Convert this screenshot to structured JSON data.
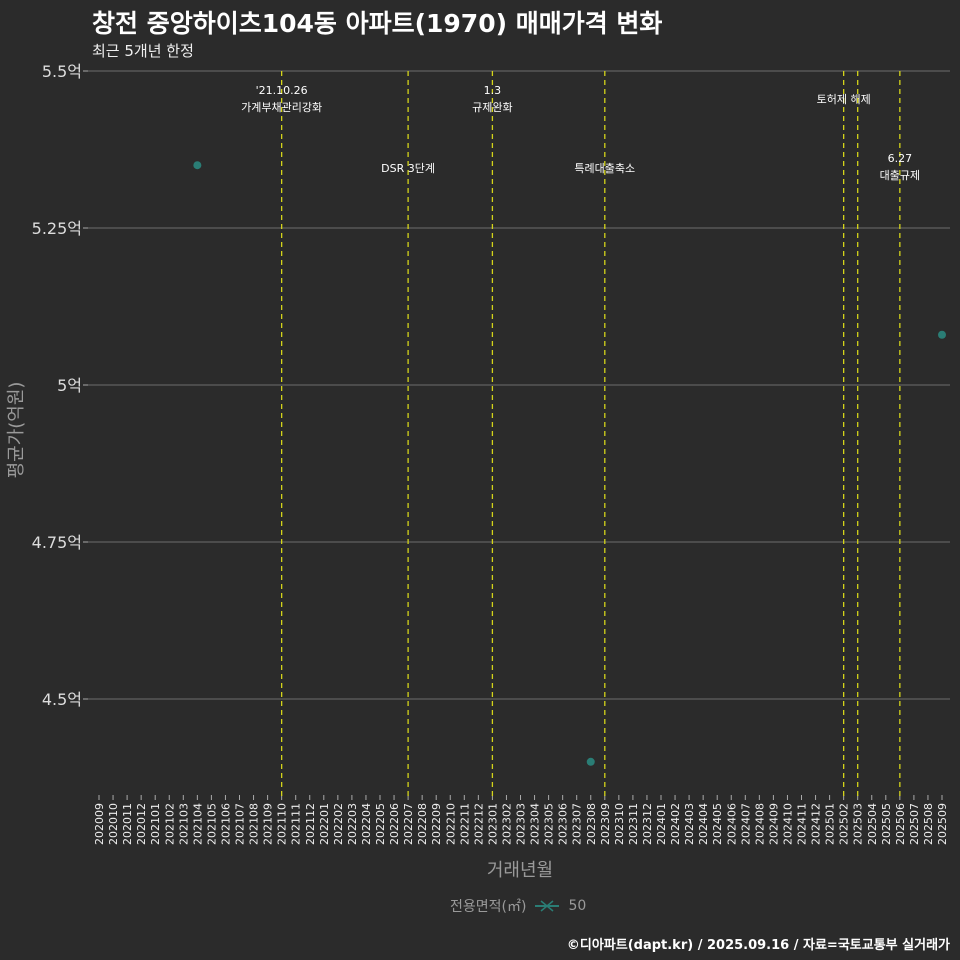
{
  "chart_data": {
    "type": "scatter",
    "title": "창전 중앙하이츠104동 아파트(1970) 매매가격 변화",
    "subtitle": "최근 5개년 한정",
    "xlabel": "거래년월",
    "ylabel": "평균가(억원)",
    "x_ticks": [
      "202009",
      "202010",
      "202011",
      "202012",
      "202101",
      "202102",
      "202103",
      "202104",
      "202105",
      "202106",
      "202107",
      "202108",
      "202109",
      "202110",
      "202111",
      "202112",
      "202201",
      "202202",
      "202203",
      "202204",
      "202205",
      "202206",
      "202207",
      "202208",
      "202209",
      "202210",
      "202211",
      "202212",
      "202301",
      "202302",
      "202303",
      "202304",
      "202305",
      "202306",
      "202307",
      "202308",
      "202309",
      "202310",
      "202311",
      "202312",
      "202401",
      "202402",
      "202403",
      "202404",
      "202405",
      "202406",
      "202407",
      "202408",
      "202409",
      "202410",
      "202411",
      "202412",
      "202501",
      "202502",
      "202503",
      "202504",
      "202505",
      "202506",
      "202507",
      "202508",
      "202509"
    ],
    "y_ticks": [
      4.5,
      4.75,
      5,
      5.25,
      5.5
    ],
    "y_tick_labels": [
      "4.5억",
      "4.75억",
      "5억",
      "5.25억",
      "5.5억"
    ],
    "ylim": [
      4.33,
      5.5
    ],
    "grid": true,
    "series": [
      {
        "name": "50",
        "color": "#2a7d75",
        "points": [
          {
            "x": "202104",
            "y": 5.35
          },
          {
            "x": "202308",
            "y": 4.4
          },
          {
            "x": "202509",
            "y": 5.08
          }
        ]
      }
    ],
    "legend": {
      "title": "전용면적(㎡)",
      "entries": [
        "50"
      ],
      "placement": "bottom"
    },
    "annotations": [
      {
        "x": "202110",
        "lines": [
          "'21.10.26",
          "가계부채관리강화"
        ]
      },
      {
        "x": "202207",
        "lines": [
          "DSR 3단계"
        ]
      },
      {
        "x": "202301",
        "lines": [
          "1.3",
          "규제완화"
        ]
      },
      {
        "x": "202309",
        "lines": [
          "특례대출축소"
        ]
      },
      {
        "x": "202502",
        "lines": [
          "토허제 해제"
        ]
      },
      {
        "x": "202503",
        "lines": []
      },
      {
        "x": "202506",
        "lines": [
          "6.27",
          "대출규제"
        ]
      }
    ],
    "vline_color": "#d4d41a",
    "caption": "©디아파트(dapt.kr) / 2025.09.16 / 자료=국토교통부 실거래가"
  }
}
